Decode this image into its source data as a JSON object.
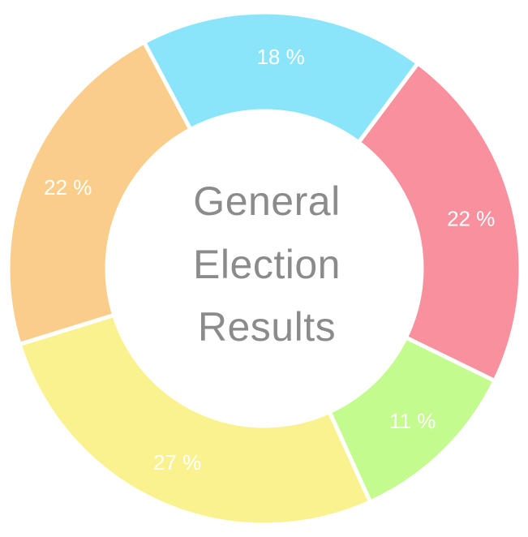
{
  "chart_data": {
    "type": "pie",
    "donut": true,
    "title": "General Election Results",
    "title_lines": [
      "General",
      "Election",
      "Results"
    ],
    "slices": [
      {
        "label": "18 %",
        "value": 18,
        "color": "#8BE5FA"
      },
      {
        "label": "22 %",
        "value": 22,
        "color": "#F8909E"
      },
      {
        "label": "11 %",
        "value": 11,
        "color": "#C3FB8E"
      },
      {
        "label": "27 %",
        "value": 27,
        "color": "#FAF28F"
      },
      {
        "label": "22 %",
        "value": 22,
        "color": "#FACD8A"
      }
    ],
    "slice_label_color": "#FFFFFF",
    "title_color": "#8B8B8B",
    "gap_color": "#FFFFFF",
    "background": "#FFFFFF",
    "legend": "none"
  }
}
